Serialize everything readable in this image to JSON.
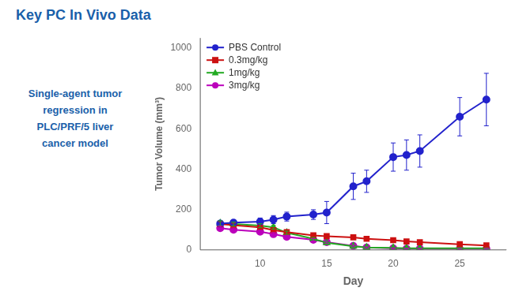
{
  "chart_data": {
    "type": "line",
    "title": "Key PC In Vivo Data",
    "title_color": "#1a5faa",
    "subtitle": [
      "Single-agent tumor",
      "regression in",
      "PLC/PRF/5 liver",
      "cancer model"
    ],
    "subtitle_color": "#1a5faa",
    "xlabel": "Day",
    "ylabel": "Tumor Volume (mm³)",
    "x": [
      7,
      8,
      10,
      11,
      12,
      14,
      15,
      17,
      18,
      20,
      21,
      22,
      25,
      27
    ],
    "series": [
      {
        "name": "PBS Control",
        "color": "#2222cc",
        "marker": "circle",
        "line_style": "solid",
        "values": [
          130,
          135,
          140,
          150,
          165,
          175,
          185,
          315,
          340,
          460,
          470,
          490,
          660,
          745
        ],
        "yerr": [
          14,
          12,
          18,
          20,
          22,
          24,
          55,
          65,
          55,
          70,
          75,
          80,
          95,
          130
        ]
      },
      {
        "name": "0.3mg/kg",
        "color": "#cc1111",
        "marker": "square",
        "line_style": "solid",
        "values": [
          128,
          122,
          112,
          98,
          88,
          72,
          68,
          62,
          55,
          48,
          42,
          38,
          28,
          22
        ],
        "yerr": [
          12,
          10,
          10,
          9,
          8,
          7,
          7,
          6,
          6,
          5,
          5,
          5,
          4,
          4
        ]
      },
      {
        "name": "1mg/kg",
        "color": "#22aa22",
        "marker": "triangle",
        "line_style": "solid",
        "values": [
          132,
          128,
          120,
          112,
          85,
          55,
          35,
          18,
          12,
          10,
          8,
          8,
          8,
          8
        ],
        "yerr": [
          12,
          10,
          10,
          9,
          8,
          7,
          5,
          4,
          3,
          3,
          2,
          2,
          2,
          2
        ]
      },
      {
        "name": "3mg/kg",
        "color": "#bb00bb",
        "marker": "circle",
        "line_style": "solid",
        "values": [
          108,
          100,
          90,
          78,
          65,
          50,
          38,
          20,
          12,
          8,
          6,
          6,
          5,
          5
        ],
        "yerr": [
          10,
          9,
          8,
          8,
          7,
          6,
          5,
          4,
          3,
          3,
          2,
          2,
          2,
          2
        ]
      }
    ],
    "xlim": [
      5.5,
      28.5
    ],
    "ylim": [
      0,
      1050
    ],
    "xticks": [
      10,
      15,
      20,
      25
    ],
    "yticks": [
      0,
      200,
      400,
      600,
      800,
      1000
    ],
    "grid": false,
    "legend": "upper left"
  }
}
